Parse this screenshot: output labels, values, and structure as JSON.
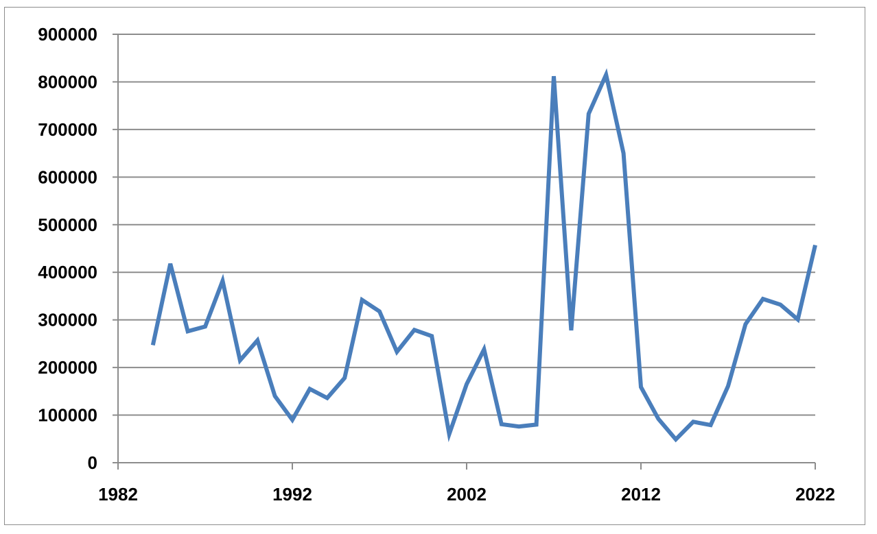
{
  "chart_data": {
    "type": "line",
    "title": "",
    "xlabel": "",
    "ylabel": "",
    "xlim": [
      1982,
      2022
    ],
    "ylim": [
      0,
      900000
    ],
    "x_ticks": [
      1982,
      1992,
      2002,
      2012,
      2022
    ],
    "y_ticks": [
      0,
      100000,
      200000,
      300000,
      400000,
      500000,
      600000,
      700000,
      800000,
      900000
    ],
    "grid": "horizontal",
    "legend": "none",
    "series": [
      {
        "color": "#4a7ebb",
        "x": [
          1984,
          1985,
          1986,
          1987,
          1988,
          1989,
          1990,
          1991,
          1992,
          1993,
          1994,
          1995,
          1996,
          1997,
          1998,
          1999,
          2000,
          2001,
          2002,
          2003,
          2004,
          2005,
          2006,
          2007,
          2008,
          2009,
          2010,
          2011,
          2012,
          2013,
          2014,
          2015,
          2016,
          2017,
          2018,
          2019,
          2020,
          2021,
          2022
        ],
        "y": [
          247000,
          418000,
          276000,
          286000,
          382000,
          215000,
          257000,
          140000,
          90000,
          155000,
          136000,
          178000,
          342000,
          318000,
          233000,
          279000,
          266000,
          60000,
          165000,
          238000,
          81000,
          76000,
          80000,
          812000,
          278000,
          733000,
          815000,
          650000,
          159000,
          92000,
          49000,
          86000,
          79000,
          161000,
          291000,
          344000,
          332000,
          301000,
          457000
        ]
      }
    ]
  }
}
